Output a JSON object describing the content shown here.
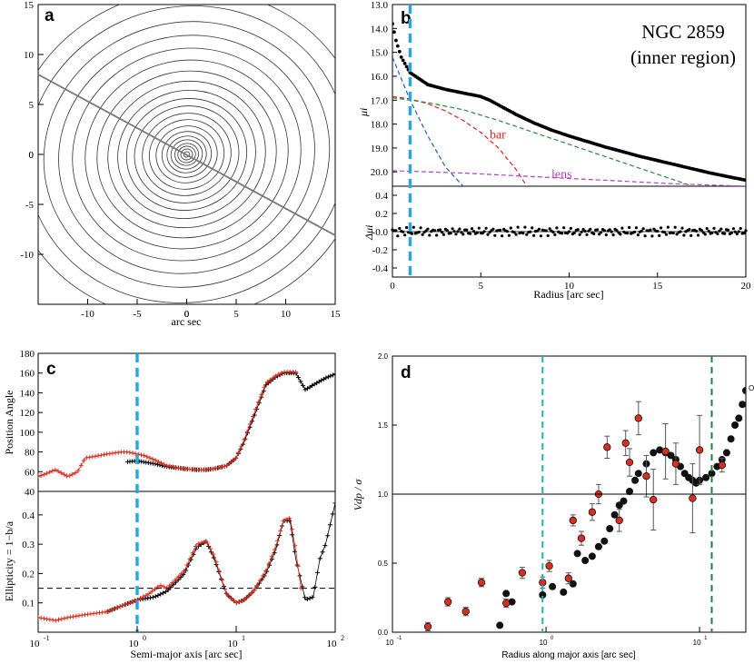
{
  "chart_data": [
    {
      "id": "a",
      "type": "contour",
      "panel_label": "a",
      "xlabel": "arc sec",
      "xlim": [
        -15,
        15
      ],
      "ylim": [
        -15,
        15
      ],
      "xticks": [
        -10,
        -5,
        0,
        5,
        10,
        15
      ],
      "yticks": [
        -10,
        -5,
        0,
        5,
        10,
        15
      ],
      "major_axis_line": {
        "x": [
          -15,
          15
        ],
        "y": [
          8.0,
          -8.1
        ]
      },
      "contour_semi_major_axes": [
        0.3,
        0.6,
        0.9,
        1.2,
        1.6,
        2.0,
        2.5,
        3.1,
        3.8,
        4.5,
        5.3,
        6.1,
        7.0,
        8.0,
        9.1,
        10.3,
        11.6,
        13.0,
        14.5,
        16.2,
        18.0
      ]
    },
    {
      "id": "b",
      "type": "line",
      "panel_label": "b",
      "title": "NGC 2859",
      "subtitle": "(inner region)",
      "xlabel": "Radius [arc sec]",
      "ylabel_top": "μi",
      "ylabel_bottom": "Δμi",
      "xlim": [
        0,
        20
      ],
      "ylim_top": [
        20.6,
        13.0
      ],
      "ylim_bottom": [
        -0.5,
        0.5
      ],
      "xticks": [
        0,
        5,
        10,
        15,
        20
      ],
      "yticks_top": [
        13.0,
        14.0,
        15.0,
        16.0,
        17.0,
        18.0,
        19.0,
        20.0
      ],
      "yticks_top_labels": [
        "13.0",
        "14.0",
        "15.0",
        "16.0",
        "17.0",
        "18.0",
        "19.0",
        "20.0"
      ],
      "yticks_bottom": [
        -0.4,
        -0.2,
        0.0,
        0.2,
        0.4
      ],
      "yticks_bottom_labels": [
        "-0.4",
        "-0.2",
        "0.0",
        "0.2",
        "0.4"
      ],
      "vline_x": 1.0,
      "series": [
        {
          "name": "data",
          "x": [
            0,
            0.2,
            0.5,
            0.8,
            1.0,
            1.5,
            2,
            3,
            4,
            5,
            5.5,
            6,
            7,
            8,
            9,
            10,
            12,
            14,
            16,
            18,
            20
          ],
          "y": [
            13.8,
            14.5,
            15.2,
            15.6,
            15.85,
            16.1,
            16.35,
            16.55,
            16.7,
            16.85,
            17.0,
            17.2,
            17.6,
            17.95,
            18.25,
            18.5,
            18.95,
            19.35,
            19.7,
            20.05,
            20.35
          ]
        },
        {
          "name": "bulge",
          "color": "#1f5fb0",
          "x": [
            0,
            1,
            2,
            3,
            4
          ],
          "y": [
            15.2,
            17.0,
            18.5,
            19.8,
            20.6
          ]
        },
        {
          "name": "bar",
          "label": "bar",
          "color": "#e02020",
          "x": [
            0,
            1,
            2,
            3,
            4,
            5,
            6,
            7,
            7.6
          ],
          "y": [
            16.85,
            16.95,
            17.15,
            17.45,
            17.85,
            18.35,
            19.0,
            19.9,
            20.6
          ]
        },
        {
          "name": "disk",
          "color": "#2a8a3a",
          "x": [
            0,
            2,
            4,
            6,
            8,
            10,
            12,
            14,
            15.8,
            17
          ],
          "y": [
            16.9,
            17.1,
            17.4,
            17.85,
            18.35,
            18.85,
            19.35,
            19.85,
            20.3,
            20.6
          ]
        },
        {
          "name": "lens",
          "label": "lens",
          "color": "#b040c0",
          "x": [
            0,
            4,
            8,
            12,
            16,
            20
          ],
          "y": [
            19.95,
            20.05,
            20.2,
            20.35,
            20.5,
            20.6
          ]
        }
      ],
      "labels": [
        {
          "text": "bar",
          "x": 5.5,
          "y": 18.6
        },
        {
          "text": "lens",
          "x": 9.0,
          "y": 20.25
        }
      ]
    },
    {
      "id": "c",
      "type": "scatter",
      "panel_label": "c",
      "xlabel": "Semi-major axis [arc sec]",
      "xscale": "log",
      "xlim": [
        0.1,
        100
      ],
      "xticks_labels": [
        "10",
        "10",
        "10",
        "10"
      ],
      "xticks_exps": [
        "-1",
        "0",
        "1",
        "2"
      ],
      "vline_x": 1.0,
      "top": {
        "ylabel": "Position Angle",
        "ylim": [
          40,
          180
        ],
        "yticks": [
          40,
          60,
          80,
          100,
          120,
          140,
          160,
          180
        ],
        "series": [
          {
            "name": "model",
            "color": "#000",
            "x": [
              0.8,
              1,
              1.5,
              2,
              3,
              4,
              5,
              6,
              8,
              10,
              12,
              15,
              20,
              25,
              30,
              40,
              50,
              60,
              80,
              100
            ],
            "y": [
              70,
              71,
              68,
              65,
              63,
              62,
              62,
              63,
              66,
              74,
              90,
              115,
              148,
              156,
              160,
              160,
              143,
              148,
              155,
              159
            ]
          },
          {
            "name": "observed",
            "color": "#d83020",
            "x": [
              0.1,
              0.12,
              0.15,
              0.2,
              0.25,
              0.3,
              0.4,
              0.5,
              0.7,
              0.8,
              1,
              1.2,
              1.5,
              2,
              3,
              4,
              5,
              6,
              8,
              10,
              12,
              15,
              20,
              25,
              30,
              40
            ],
            "y": [
              55,
              58,
              62,
              55,
              60,
              74,
              76,
              78,
              80,
              80,
              78,
              76,
              72,
              66,
              63,
              62,
              62,
              63,
              66,
              74,
              92,
              118,
              150,
              157,
              161,
              161
            ]
          }
        ]
      },
      "bottom": {
        "ylabel": "Ellipticity = 1−b/a",
        "ylim": [
          0,
          0.48
        ],
        "yticks": [
          0.1,
          0.2,
          0.3,
          0.4
        ],
        "yticks_labels": [
          "0.1",
          "0.2",
          "0.3",
          "0.4"
        ],
        "hline_y": 0.15,
        "series": [
          {
            "name": "model",
            "color": "#000",
            "x": [
              0.5,
              0.7,
              1,
              1.5,
              2,
              3,
              4,
              5,
              6,
              8,
              10,
              12,
              15,
              20,
              25,
              30,
              35,
              40,
              50,
              60,
              70,
              80,
              100
            ],
            "y": [
              0.07,
              0.09,
              0.11,
              0.12,
              0.14,
              0.2,
              0.29,
              0.31,
              0.25,
              0.13,
              0.1,
              0.11,
              0.14,
              0.2,
              0.28,
              0.38,
              0.38,
              0.25,
              0.11,
              0.12,
              0.25,
              0.3,
              0.44
            ]
          },
          {
            "name": "observed",
            "color": "#d83020",
            "x": [
              0.1,
              0.15,
              0.2,
              0.3,
              0.5,
              0.7,
              1,
              1.3,
              1.7,
              2,
              3,
              4,
              5,
              6,
              8,
              10,
              12,
              15,
              20,
              25,
              30,
              35,
              40,
              45
            ],
            "y": [
              0.05,
              0.04,
              0.05,
              0.06,
              0.07,
              0.09,
              0.11,
              0.13,
              0.16,
              0.15,
              0.21,
              0.3,
              0.31,
              0.26,
              0.13,
              0.1,
              0.11,
              0.14,
              0.21,
              0.29,
              0.38,
              0.39,
              0.28,
              0.15
            ]
          }
        ]
      }
    },
    {
      "id": "d",
      "type": "scatter",
      "panel_label": "d",
      "xlabel": "Radius along major axis [arc sec]",
      "ylabel": "Vdp / σ",
      "xscale": "log",
      "xlim": [
        0.1,
        20
      ],
      "ylim": [
        0,
        2.0
      ],
      "yticks": [
        0,
        0.5,
        1.0,
        1.5,
        2.0
      ],
      "yticks_labels": [
        "0.0",
        "0.5",
        "1.0",
        "1.5",
        "2.0"
      ],
      "xticks_labels": [
        "10",
        "10",
        "10"
      ],
      "xticks_exps": [
        "-1",
        "0",
        "1"
      ],
      "hline_y": 1.0,
      "vlines": [
        {
          "x": 0.95,
          "color": "#20b0b0"
        },
        {
          "x": 12,
          "color": "#208040"
        }
      ],
      "series": [
        {
          "name": "black points",
          "color": "#111",
          "x": [
            0.5,
            0.55,
            0.6,
            0.95,
            1.1,
            1.3,
            1.5,
            1.6,
            1.8,
            2.0,
            2.2,
            2.4,
            2.6,
            2.8,
            3.0,
            3.2,
            3.5,
            3.8,
            4.0,
            4.5,
            5,
            5.5,
            6,
            6.5,
            7,
            7.5,
            8,
            8.5,
            9,
            9.5,
            10,
            11,
            12,
            13,
            14,
            15,
            16,
            17,
            18,
            19,
            20
          ],
          "y": [
            0.05,
            0.28,
            0.22,
            0.27,
            0.33,
            0.29,
            0.35,
            0.57,
            0.52,
            0.55,
            0.62,
            0.66,
            0.75,
            0.85,
            0.92,
            0.95,
            1.02,
            1.1,
            1.15,
            1.22,
            1.3,
            1.32,
            1.3,
            1.28,
            1.25,
            1.2,
            1.15,
            1.12,
            1.1,
            1.08,
            1.1,
            1.12,
            1.15,
            1.2,
            1.25,
            1.3,
            1.4,
            1.5,
            1.55,
            1.65,
            1.75
          ]
        },
        {
          "name": "red points",
          "color": "#d83020",
          "x": [
            0.17,
            0.23,
            0.3,
            0.38,
            0.55,
            0.7,
            0.95,
            1.05,
            1.4,
            1.5,
            1.7,
            2.0,
            2.2,
            2.5,
            3.0,
            3.3,
            3.5,
            4.0,
            4.5,
            5.0,
            6.0,
            7.0,
            9.0,
            10.0,
            14.0
          ],
          "y": [
            0.04,
            0.22,
            0.15,
            0.36,
            0.21,
            0.43,
            0.36,
            0.48,
            0.39,
            0.81,
            0.68,
            0.87,
            1.0,
            1.34,
            0.81,
            1.37,
            1.23,
            1.55,
            1.13,
            0.96,
            1.31,
            1.22,
            0.97,
            1.32,
            1.21
          ],
          "err": [
            0.03,
            0.03,
            0.03,
            0.03,
            0.03,
            0.04,
            0.04,
            0.04,
            0.04,
            0.04,
            0.05,
            0.06,
            0.07,
            0.08,
            0.08,
            0.09,
            0.1,
            0.12,
            0.15,
            0.22,
            0.2,
            0.15,
            0.25,
            0.25,
            0.05
          ]
        }
      ],
      "open_marker_label": "O"
    }
  ]
}
